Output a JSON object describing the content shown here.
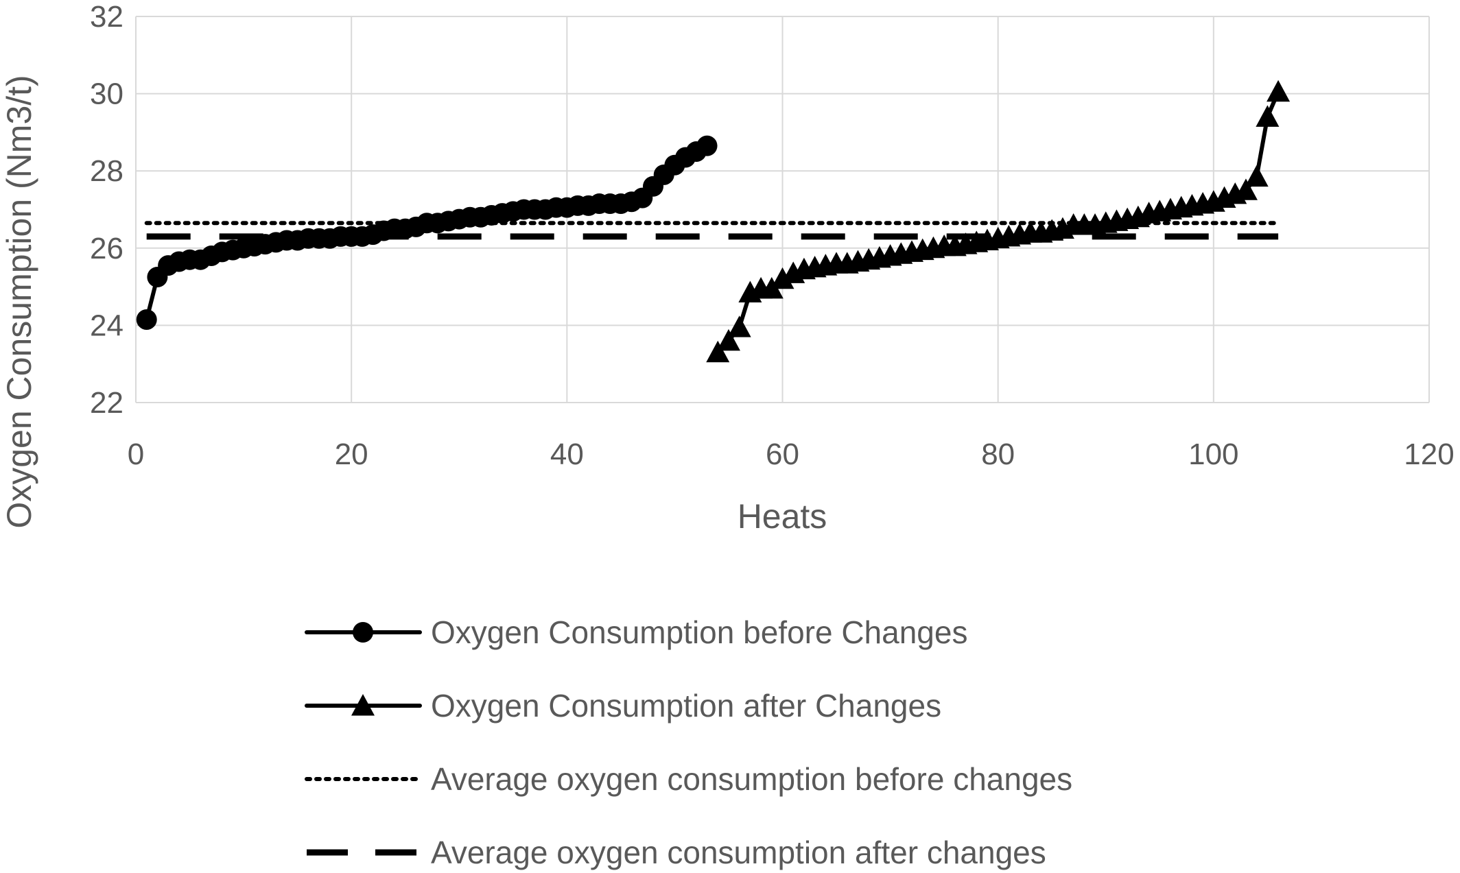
{
  "chart_data": {
    "type": "line",
    "title": "",
    "xlabel": "Heats",
    "ylabel": "Oxygen Consumption (Nm3/t)",
    "xlim": [
      0,
      120
    ],
    "ylim": [
      22,
      32
    ],
    "xticks": [
      "0",
      "20",
      "40",
      "60",
      "80",
      "100",
      "120"
    ],
    "yticks": [
      "22",
      "24",
      "26",
      "28",
      "30",
      "32"
    ],
    "grid": true,
    "legend_position": "bottom",
    "series": [
      {
        "name": "Oxygen Consumption before Changes",
        "marker": "circle",
        "line": "solid",
        "x": [
          1,
          2,
          3,
          4,
          5,
          6,
          7,
          8,
          9,
          10,
          11,
          12,
          13,
          14,
          15,
          16,
          17,
          18,
          19,
          20,
          21,
          22,
          23,
          24,
          25,
          26,
          27,
          28,
          29,
          30,
          31,
          32,
          33,
          34,
          35,
          36,
          37,
          38,
          39,
          40,
          41,
          42,
          43,
          44,
          45,
          46,
          47,
          48,
          49,
          50,
          51,
          52,
          53
        ],
        "y": [
          24.15,
          25.25,
          25.55,
          25.65,
          25.7,
          25.7,
          25.8,
          25.9,
          25.95,
          26.0,
          26.05,
          26.1,
          26.15,
          26.2,
          26.2,
          26.25,
          26.25,
          26.25,
          26.3,
          26.3,
          26.3,
          26.35,
          26.45,
          26.5,
          26.5,
          26.55,
          26.65,
          26.65,
          26.7,
          26.75,
          26.8,
          26.8,
          26.85,
          26.9,
          26.95,
          27.0,
          27.0,
          27.0,
          27.05,
          27.05,
          27.1,
          27.1,
          27.15,
          27.15,
          27.15,
          27.2,
          27.3,
          27.6,
          27.9,
          28.15,
          28.35,
          28.5,
          28.65
        ]
      },
      {
        "name": "Oxygen Consumption after Changes",
        "marker": "triangle",
        "line": "solid",
        "x": [
          54,
          55,
          56,
          57,
          58,
          59,
          60,
          61,
          62,
          63,
          64,
          65,
          66,
          67,
          68,
          69,
          70,
          71,
          72,
          73,
          74,
          75,
          76,
          77,
          78,
          79,
          80,
          81,
          82,
          83,
          84,
          85,
          86,
          87,
          88,
          89,
          90,
          91,
          92,
          93,
          94,
          95,
          96,
          97,
          98,
          99,
          100,
          101,
          102,
          103,
          104,
          105,
          106
        ],
        "y": [
          23.3,
          23.6,
          23.95,
          24.85,
          24.95,
          24.95,
          25.2,
          25.35,
          25.45,
          25.5,
          25.55,
          25.6,
          25.6,
          25.65,
          25.7,
          25.75,
          25.8,
          25.85,
          25.9,
          25.95,
          26.0,
          26.05,
          26.05,
          26.1,
          26.15,
          26.2,
          26.25,
          26.3,
          26.35,
          26.4,
          26.4,
          26.45,
          26.5,
          26.6,
          26.6,
          26.6,
          26.65,
          26.7,
          26.75,
          26.8,
          26.9,
          26.95,
          27.0,
          27.05,
          27.1,
          27.15,
          27.2,
          27.3,
          27.4,
          27.5,
          27.85,
          29.4,
          30.05
        ]
      },
      {
        "name": "Average oxygen consumption before changes",
        "marker": "none",
        "line": "dotted",
        "x": [
          1,
          106
        ],
        "y": [
          26.65,
          26.65
        ]
      },
      {
        "name": "Average oxygen consumption after changes",
        "marker": "none",
        "line": "dashed",
        "x": [
          1,
          106
        ],
        "y": [
          26.3,
          26.3
        ]
      }
    ]
  }
}
